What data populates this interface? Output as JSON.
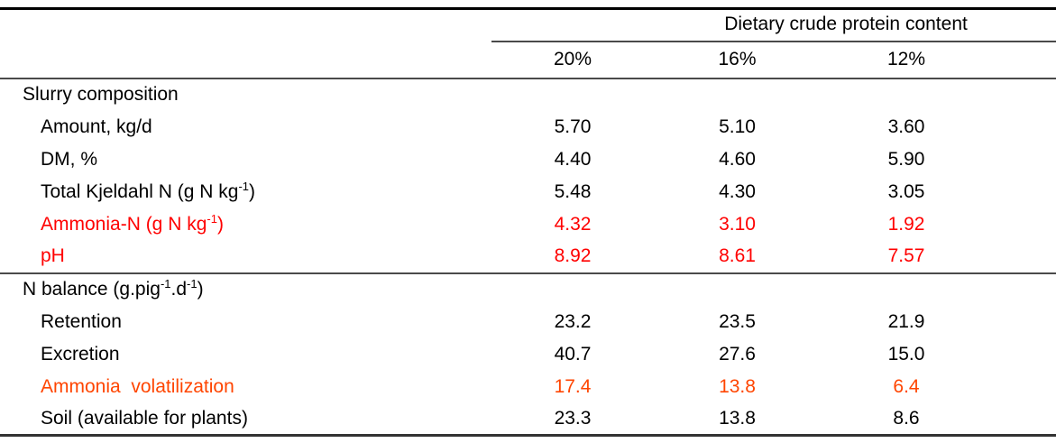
{
  "table": {
    "group_header": "Dietary crude protein content",
    "column_headers": [
      "20%",
      "16%",
      "12%"
    ],
    "colors": {
      "text": "#000000",
      "red": "#ff0000",
      "orange": "#ff4500"
    },
    "sections": [
      {
        "title_segments": [
          {
            "t": "Slurry composition"
          }
        ],
        "rows": [
          {
            "label_segments": [
              {
                "t": "Amount, kg/d"
              }
            ],
            "values": [
              "5.70",
              "5.10",
              "3.60"
            ],
            "color": "text"
          },
          {
            "label_segments": [
              {
                "t": "DM, %"
              }
            ],
            "values": [
              "4.40",
              "4.60",
              "5.90"
            ],
            "color": "text"
          },
          {
            "label_segments": [
              {
                "t": "Total Kjeldahl N (g N kg"
              },
              {
                "t": "-1",
                "sup": true
              },
              {
                "t": ")"
              }
            ],
            "values": [
              "5.48",
              "4.30",
              "3.05"
            ],
            "color": "text"
          },
          {
            "label_segments": [
              {
                "t": "Ammonia-N (g N kg"
              },
              {
                "t": "-1",
                "sup": true
              },
              {
                "t": ")"
              }
            ],
            "values": [
              "4.32",
              "3.10",
              "1.92"
            ],
            "color": "red"
          },
          {
            "label_segments": [
              {
                "t": "pH"
              }
            ],
            "values": [
              "8.92",
              "8.61",
              "7.57"
            ],
            "color": "red"
          }
        ]
      },
      {
        "title_segments": [
          {
            "t": "N balance (g.pig"
          },
          {
            "t": "-1",
            "sup": true
          },
          {
            "t": ".d"
          },
          {
            "t": "-1",
            "sup": true
          },
          {
            "t": ")"
          }
        ],
        "rows": [
          {
            "label_segments": [
              {
                "t": "Retention"
              }
            ],
            "values": [
              "23.2",
              "23.5",
              "21.9"
            ],
            "color": "text"
          },
          {
            "label_segments": [
              {
                "t": "Excretion"
              }
            ],
            "values": [
              "40.7",
              "27.6",
              "15.0"
            ],
            "color": "text"
          },
          {
            "label_segments": [
              {
                "t": "Ammonia  volatilization"
              }
            ],
            "values": [
              "17.4",
              "13.8",
              "6.4"
            ],
            "color": "orange"
          },
          {
            "label_segments": [
              {
                "t": "Soil (available for plants)"
              }
            ],
            "values": [
              "23.3",
              "13.8",
              "8.6"
            ],
            "color": "text"
          }
        ]
      }
    ]
  }
}
